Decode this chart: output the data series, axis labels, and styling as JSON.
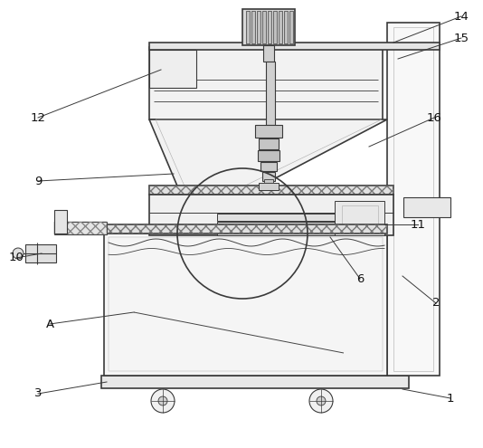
{
  "bg_color": "#ffffff",
  "lc": "#3a3a3a",
  "lc2": "#555555",
  "figsize": [
    5.34,
    4.95
  ],
  "dpi": 100,
  "annotations": [
    [
      "14",
      510,
      18,
      435,
      47
    ],
    [
      "15",
      510,
      42,
      440,
      65
    ],
    [
      "16",
      480,
      130,
      408,
      162
    ],
    [
      "12",
      42,
      130,
      178,
      77
    ],
    [
      "9",
      42,
      200,
      192,
      192
    ],
    [
      "11",
      462,
      248,
      425,
      248
    ],
    [
      "6",
      398,
      308,
      365,
      262
    ],
    [
      "10",
      18,
      285,
      46,
      280
    ],
    [
      "2",
      482,
      335,
      445,
      305
    ],
    [
      "3",
      42,
      435,
      118,
      422
    ],
    [
      "1",
      498,
      440,
      445,
      430
    ],
    [
      "A",
      55,
      358,
      148,
      345
    ]
  ]
}
